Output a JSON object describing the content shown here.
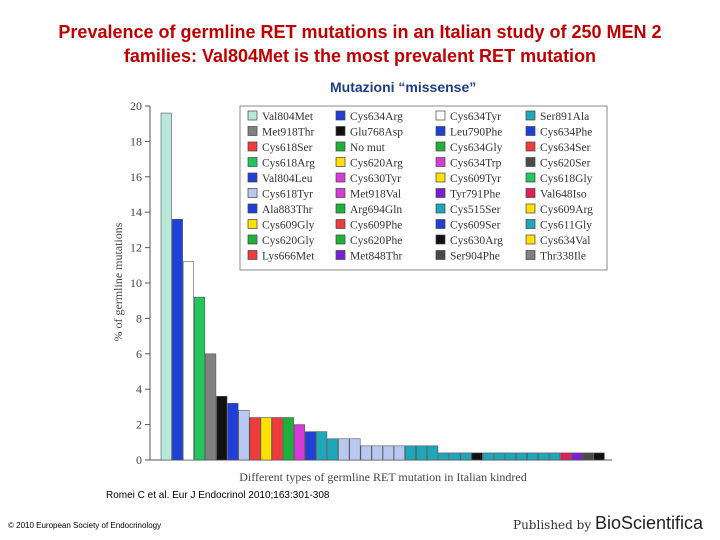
{
  "title": "Prevalence of germline RET mutations in an Italian study of 250 MEN 2 families: Val804Met is the most prevalent RET mutation",
  "subtitle": "Mutazioni “missense”",
  "citation": "Romei C et al. Eur J Endocrinol 2010;163:301-308",
  "copyright": "© 2010 European Society of Endocrinology",
  "publisher": {
    "prefix": "Published by",
    "brand": "BioScientifica"
  },
  "chart_data": {
    "type": "bar",
    "title": "",
    "xlabel": "Different types of germline RET mutation in Italian kindred",
    "ylabel": "% of germline mutations",
    "ylim": [
      0,
      20
    ],
    "yticks": [
      0,
      2,
      4,
      6,
      8,
      10,
      12,
      14,
      16,
      18,
      20
    ],
    "grid": false,
    "legend_position": "top-right",
    "categories": [
      "Val804Met",
      "Met918Thr",
      "Cys618Ser",
      "Cys618Arg",
      "Val804Leu",
      "Cys618Tyr",
      "Ala883Thr",
      "Cys609Gly",
      "Cys620Gly",
      "Lys666Met",
      "Cys634Arg",
      "Glu768Asp",
      "No mut",
      "Cys620Arg",
      "Cys630Tyr",
      "Met918Val",
      "Arg694Gln",
      "Cys609Phe",
      "Cys620Phe",
      "Met848Thr",
      "Cys634Tyr",
      "Leu790Phe",
      "Cys634Gly",
      "Cys634Trp",
      "Cys609Tyr",
      "Tyr791Phe",
      "Cys515Ser",
      "Cys609Ser",
      "Cys630Arg",
      "Ser904Phe",
      "Ser891Ala",
      "Cys634Phe",
      "Cys634Ser",
      "Cys620Ser",
      "Cys618Gly",
      "Val648Iso",
      "Cys609Arg",
      "Cys611Gly",
      "Cys634Val",
      "Thr338Ile"
    ],
    "colors": [
      "#b8e8da",
      "#1f3fd6",
      "#ffffff",
      "#22c55e",
      "#808080",
      "#111111",
      "#1f3fd6",
      "#b9c8f0",
      "#ef3b3b",
      "#ffe000",
      "#ef3b3b",
      "#1fb03a",
      "#d63bd6",
      "#1f3fd6",
      "#1fa6b8",
      "#1fa6b8",
      "#b9c8f0",
      "#b9c8f0",
      "#b9c8f0",
      "#b9c8f0",
      "#b9c8f0",
      "#b9c8f0",
      "#1fa6b8",
      "#1fa6b8",
      "#1fa6b8",
      "#1fa6b8",
      "#1fa6b8",
      "#1fa6b8",
      "#111111",
      "#1fa6b8",
      "#1fa6b8",
      "#1fa6b8",
      "#1fa6b8",
      "#1fa6b8",
      "#1fa6b8",
      "#1fa6b8",
      "#e01e5a",
      "#7a1fd6",
      "#4a4a4a",
      "#111111"
    ],
    "values": [
      19.6,
      13.6,
      11.2,
      9.2,
      6.0,
      3.6,
      3.2,
      2.8,
      2.4,
      2.4,
      2.4,
      2.4,
      2.0,
      1.6,
      1.6,
      1.2,
      1.2,
      1.2,
      0.8,
      0.8,
      0.8,
      0.8,
      0.8,
      0.8,
      0.8,
      0.4,
      0.4,
      0.4,
      0.4,
      0.4,
      0.4,
      0.4,
      0.4,
      0.4,
      0.4,
      0.4,
      0.4,
      0.4,
      0.4,
      0.4
    ],
    "legend_columns": [
      [
        {
          "name": "Val804Met",
          "color": "#b8e8da"
        },
        {
          "name": "Met918Thr",
          "color": "#808080"
        },
        {
          "name": "Cys618Ser",
          "color": "#ef3b3b"
        },
        {
          "name": "Cys618Arg",
          "color": "#22c55e"
        },
        {
          "name": "Val804Leu",
          "color": "#1f3fd6"
        },
        {
          "name": "Cys618Tyr",
          "color": "#b9c8f0"
        },
        {
          "name": "Ala883Thr",
          "color": "#1f3fd6"
        },
        {
          "name": "Cys609Gly",
          "color": "#ffe000"
        },
        {
          "name": "Cys620Gly",
          "color": "#1fb03a"
        },
        {
          "name": "Lys666Met",
          "color": "#ef3b3b"
        }
      ],
      [
        {
          "name": "Cys634Arg",
          "color": "#1f3fd6"
        },
        {
          "name": "Glu768Asp",
          "color": "#111111"
        },
        {
          "name": "No mut",
          "color": "#1fb03a"
        },
        {
          "name": "Cys620Arg",
          "color": "#ffe000"
        },
        {
          "name": "Cys630Tyr",
          "color": "#d63bd6"
        },
        {
          "name": "Met918Val",
          "color": "#d63bd6"
        },
        {
          "name": "Arg694Gln",
          "color": "#1fb03a"
        },
        {
          "name": "Cys609Phe",
          "color": "#ef3b3b"
        },
        {
          "name": "Cys620Phe",
          "color": "#1fb03a"
        },
        {
          "name": "Met848Thr",
          "color": "#7a1fd6"
        }
      ],
      [
        {
          "name": "Cys634Tyr",
          "color": "#ffffff"
        },
        {
          "name": "Leu790Phe",
          "color": "#1f3fd6"
        },
        {
          "name": "Cys634Gly",
          "color": "#1fb03a"
        },
        {
          "name": "Cys634Trp",
          "color": "#d63bd6"
        },
        {
          "name": "Cys609Tyr",
          "color": "#ffe000"
        },
        {
          "name": "Tyr791Phe",
          "color": "#7a1fd6"
        },
        {
          "name": "Cys515Ser",
          "color": "#1fa6b8"
        },
        {
          "name": "Cys609Ser",
          "color": "#1f3fd6"
        },
        {
          "name": "Cys630Arg",
          "color": "#111111"
        },
        {
          "name": "Ser904Phe",
          "color": "#4a4a4a"
        }
      ],
      [
        {
          "name": "Ser891Ala",
          "color": "#1fa6b8"
        },
        {
          "name": "Cys634Phe",
          "color": "#1f3fd6"
        },
        {
          "name": "Cys634Ser",
          "color": "#ef3b3b"
        },
        {
          "name": "Cys620Ser",
          "color": "#4a4a4a"
        },
        {
          "name": "Cys618Gly",
          "color": "#22c55e"
        },
        {
          "name": "Val648Iso",
          "color": "#e01e5a"
        },
        {
          "name": "Cys609Arg",
          "color": "#ffe000"
        },
        {
          "name": "Cys611Gly",
          "color": "#1fa6b8"
        },
        {
          "name": "Cys634Val",
          "color": "#ffe000"
        },
        {
          "name": "Thr338Ile",
          "color": "#808080"
        }
      ]
    ]
  }
}
